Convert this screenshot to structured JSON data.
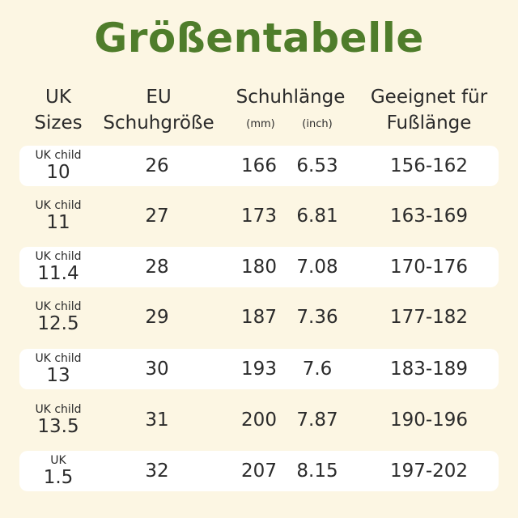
{
  "title": "Größentabelle",
  "headers": {
    "uk": [
      "UK",
      "Sizes"
    ],
    "eu": [
      "EU",
      "Schuhgröße"
    ],
    "length": "Schuhlänge",
    "unit_mm": "(mm)",
    "unit_inch": "(inch)",
    "foot": [
      "Geeignet für",
      "Fußlänge"
    ]
  },
  "rows": [
    {
      "uk_small": "UK child",
      "uk_big": "10",
      "eu": "26",
      "mm": "166",
      "inch": "6.53",
      "foot": "156-162"
    },
    {
      "uk_small": "UK child",
      "uk_big": "11",
      "eu": "27",
      "mm": "173",
      "inch": "6.81",
      "foot": "163-169"
    },
    {
      "uk_small": "UK child",
      "uk_big": "11.4",
      "eu": "28",
      "mm": "180",
      "inch": "7.08",
      "foot": "170-176"
    },
    {
      "uk_small": "UK child",
      "uk_big": "12.5",
      "eu": "29",
      "mm": "187",
      "inch": "7.36",
      "foot": "177-182"
    },
    {
      "uk_small": "UK child",
      "uk_big": "13",
      "eu": "30",
      "mm": "193",
      "inch": "7.6",
      "foot": "183-189"
    },
    {
      "uk_small": "UK child",
      "uk_big": "13.5",
      "eu": "31",
      "mm": "200",
      "inch": "7.87",
      "foot": "190-196"
    },
    {
      "uk_small": "UK",
      "uk_big": "1.5",
      "eu": "32",
      "mm": "207",
      "inch": "8.15",
      "foot": "197-202"
    }
  ],
  "colors": {
    "background": "#fcf6e3",
    "title": "#4f7d2b",
    "row_band": "#ffffff"
  }
}
